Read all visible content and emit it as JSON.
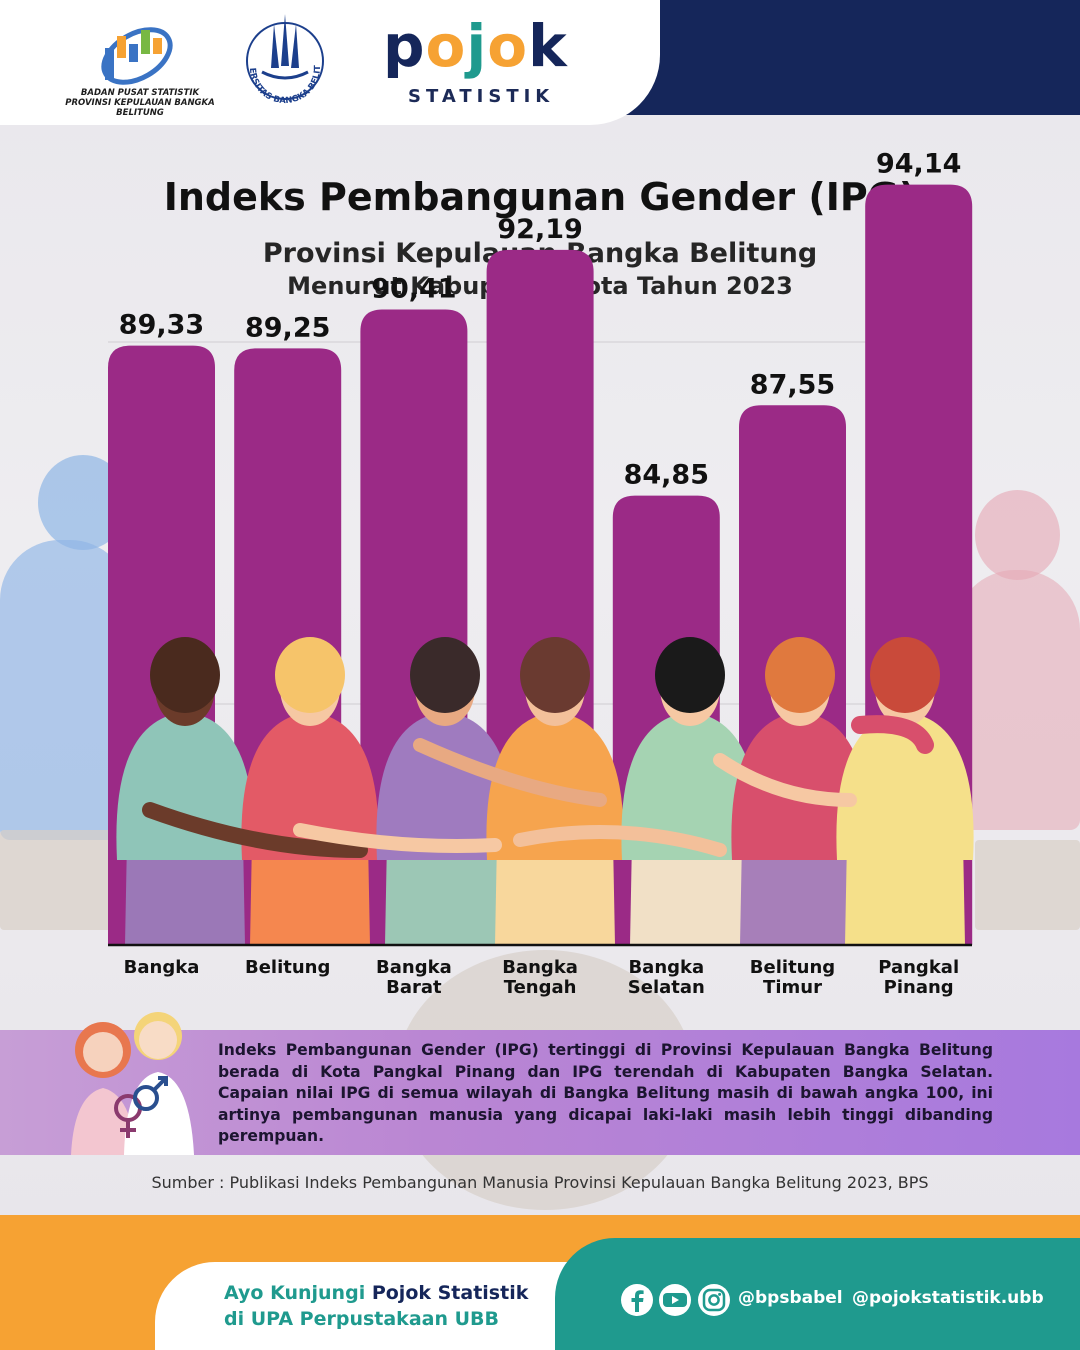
{
  "header": {
    "bps_name_line1": "BADAN PUSAT STATISTIK",
    "bps_name_line2": "PROVINSI KEPULAUAN BANGKA BELITUNG",
    "ubb_seal_text": "UNIVERSITAS BANGKA BELITUNG",
    "pojok_letters": [
      "p",
      "o",
      "j",
      "o",
      "k"
    ],
    "pojok_sub": "STATISTIK"
  },
  "title": "Indeks Pembangunan Gender (IPG)",
  "subtitle1": "Provinsi Kepulauan Bangka Belitung",
  "subtitle2": "Menurut Kabupaten/Kota Tahun 2023",
  "colors": {
    "bar": "#9b2a86",
    "navy": "#15265a",
    "teal": "#1f9a8e",
    "orange": "#f6a233",
    "pojok_letters": [
      "#15265a",
      "#f6a233",
      "#1f9a8e",
      "#f6a233",
      "#15265a"
    ]
  },
  "chart_data": {
    "type": "bar",
    "categories": [
      [
        "Bangka"
      ],
      [
        "Belitung"
      ],
      [
        "Bangka",
        "Barat"
      ],
      [
        "Bangka",
        "Tengah"
      ],
      [
        "Bangka",
        "Selatan"
      ],
      [
        "Belitung",
        "Timur"
      ],
      [
        "Pangkal",
        "Pinang"
      ]
    ],
    "values": [
      89.33,
      89.25,
      90.41,
      92.19,
      84.85,
      87.55,
      94.14
    ],
    "value_labels": [
      "89,33",
      "89,25",
      "90,41",
      "92,19",
      "84,85",
      "87,55",
      "94,14"
    ],
    "grid": true,
    "legend": "none"
  },
  "info": {
    "text": "Indeks Pembangunan Gender (IPG) tertinggi di Provinsi Kepulauan Bangka Belitung berada di Kota Pangkal Pinang dan IPG terendah di Kabupaten Bangka Selatan. Capaian nilai IPG di semua wilayah di Bangka Belitung masih di bawah angka 100, ini artinya pembangunan manusia yang dicapai laki-laki masih lebih tinggi dibanding perempuan."
  },
  "source": "Sumber : Publikasi Indeks Pembangunan Manusia Provinsi Kepulauan Bangka Belitung 2023, BPS",
  "footer": {
    "line1_prefix": "Ayo Kunjungi",
    "line1_bold": "Pojok Statistik",
    "line2": "di UPA Perpustakaan UBB",
    "handle1": "@bpsbabel",
    "handle2": "@pojokstatistik.ubb"
  }
}
